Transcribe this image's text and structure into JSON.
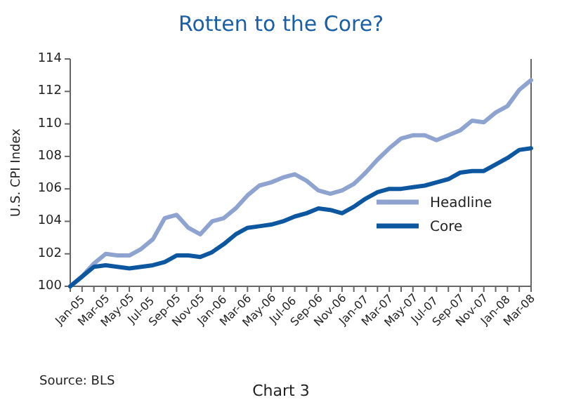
{
  "chart_data": {
    "type": "line",
    "title": "Rotten to the Core?",
    "ylabel": "U.S. CPI Index",
    "categories": [
      "Jan-05",
      null,
      "Mar-05",
      null,
      "May-05",
      null,
      "Jul-05",
      null,
      "Sep-05",
      null,
      "Nov-05",
      null,
      "Jan-06",
      null,
      "Mar-06",
      null,
      "May-06",
      null,
      "Jul-06",
      null,
      "Sep-06",
      null,
      "Nov-06",
      null,
      "Jan-07",
      null,
      "Mar-07",
      null,
      "May-07",
      null,
      "Jul-07",
      null,
      "Sep-07",
      null,
      "Nov-07",
      null,
      "Jan-08",
      null,
      "Mar-08",
      null
    ],
    "series": [
      {
        "name": "Headline",
        "color": "#8fa3d1",
        "values": [
          100,
          100.6,
          101.4,
          102,
          101.9,
          101.9,
          102.3,
          102.9,
          104.2,
          104.4,
          103.6,
          103.2,
          104,
          104.2,
          104.8,
          105.6,
          106.2,
          106.4,
          106.7,
          106.9,
          106.5,
          105.9,
          105.7,
          105.9,
          106.3,
          107,
          107.8,
          108.5,
          109.1,
          109.3,
          109.3,
          109,
          109.3,
          109.6,
          110.2,
          110.1,
          110.7,
          111.1,
          112.1,
          112.7
        ]
      },
      {
        "name": "Core",
        "color": "#0d57a0",
        "values": [
          100,
          100.6,
          101.2,
          101.3,
          101.2,
          101.1,
          101.2,
          101.3,
          101.5,
          101.9,
          101.9,
          101.8,
          102.1,
          102.6,
          103.2,
          103.6,
          103.7,
          103.8,
          104,
          104.3,
          104.5,
          104.8,
          104.7,
          104.5,
          104.9,
          105.4,
          105.8,
          106,
          106,
          106.1,
          106.2,
          106.4,
          106.6,
          107,
          107.1,
          107.1,
          107.5,
          107.9,
          108.4,
          108.5
        ]
      }
    ],
    "ylim": [
      100,
      114
    ],
    "yticks": [
      100,
      102,
      104,
      106,
      108,
      110,
      112,
      114
    ],
    "legend": "bottom right",
    "grid": false,
    "annotations": [
      "Source: BLS",
      "Chart 3"
    ]
  }
}
